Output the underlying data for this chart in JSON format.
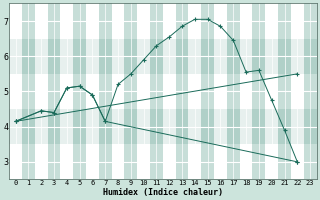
{
  "xlabel": "Humidex (Indice chaleur)",
  "bg_color": "#cce4dc",
  "grid_color_major": "#ffffff",
  "grid_color_minor": "#b0d0c8",
  "line_color": "#1a6b5a",
  "xlim": [
    -0.5,
    23.5
  ],
  "ylim": [
    2.5,
    7.5
  ],
  "yticks": [
    3,
    4,
    5,
    6,
    7
  ],
  "xticks": [
    0,
    1,
    2,
    3,
    4,
    5,
    6,
    7,
    8,
    9,
    10,
    11,
    12,
    13,
    14,
    15,
    16,
    17,
    18,
    19,
    20,
    21,
    22,
    23
  ],
  "line1_x": [
    0,
    2,
    3,
    4,
    5,
    6,
    7,
    8,
    9,
    10,
    11,
    12,
    13,
    14,
    15,
    16,
    17,
    18,
    19,
    20,
    21,
    22
  ],
  "line1_y": [
    4.15,
    4.45,
    4.4,
    5.1,
    5.15,
    4.9,
    4.15,
    5.2,
    5.5,
    5.9,
    6.3,
    6.55,
    6.85,
    7.05,
    7.05,
    6.85,
    6.45,
    5.55,
    5.6,
    4.75,
    3.9,
    3.0
  ],
  "line2_x": [
    0,
    2,
    3,
    4,
    5,
    6,
    7,
    22
  ],
  "line2_y": [
    4.15,
    4.45,
    4.4,
    5.1,
    5.15,
    4.9,
    4.15,
    3.0
  ],
  "line3_x": [
    0,
    22
  ],
  "line3_y": [
    4.15,
    5.5
  ]
}
